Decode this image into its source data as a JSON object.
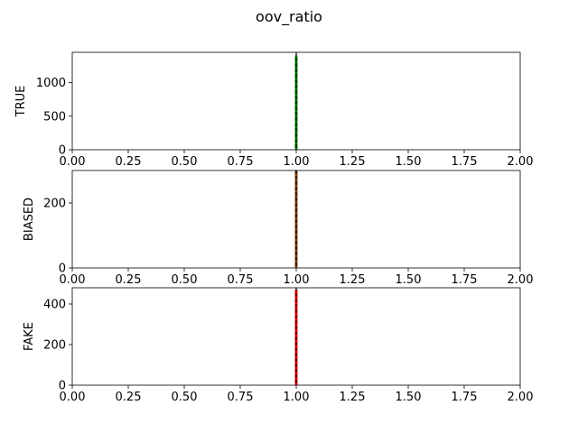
{
  "chart_data": {
    "title": "oov_ratio",
    "type": "histogram",
    "subplots": [
      {
        "ylabel": "TRUE",
        "xlim": [
          0,
          2
        ],
        "ylim": [
          0,
          1450
        ],
        "xticks": [
          "0.00",
          "0.25",
          "0.50",
          "0.75",
          "1.00",
          "1.25",
          "1.50",
          "1.75",
          "2.00"
        ],
        "yticks": [
          "0",
          "500",
          "1000"
        ],
        "bins": [
          {
            "x": 1.0,
            "count": 1400
          }
        ],
        "bar_color": "#008000",
        "vline": {
          "x": 1.0,
          "style": "dashed",
          "color": "#000000"
        }
      },
      {
        "ylabel": "BIASED",
        "xlim": [
          0,
          2
        ],
        "ylim": [
          0,
          300
        ],
        "xticks": [
          "0.00",
          "0.25",
          "0.50",
          "0.75",
          "1.00",
          "1.25",
          "1.50",
          "1.75",
          "2.00"
        ],
        "yticks": [
          "0",
          "200"
        ],
        "bins": [
          {
            "x": 1.0,
            "count": 300
          }
        ],
        "bar_color": "#8b4513",
        "vline": {
          "x": 1.0,
          "style": "dashed",
          "color": "#000000"
        }
      },
      {
        "ylabel": "FAKE",
        "xlim": [
          0,
          2
        ],
        "ylim": [
          0,
          480
        ],
        "xticks": [
          "0.00",
          "0.25",
          "0.50",
          "0.75",
          "1.00",
          "1.25",
          "1.50",
          "1.75",
          "2.00"
        ],
        "yticks": [
          "0",
          "200",
          "400"
        ],
        "bins": [
          {
            "x": 1.0,
            "count": 470
          }
        ],
        "bar_color": "#ff0000",
        "vline": {
          "x": 1.0,
          "style": "dashed",
          "color": "#000000"
        }
      }
    ]
  }
}
